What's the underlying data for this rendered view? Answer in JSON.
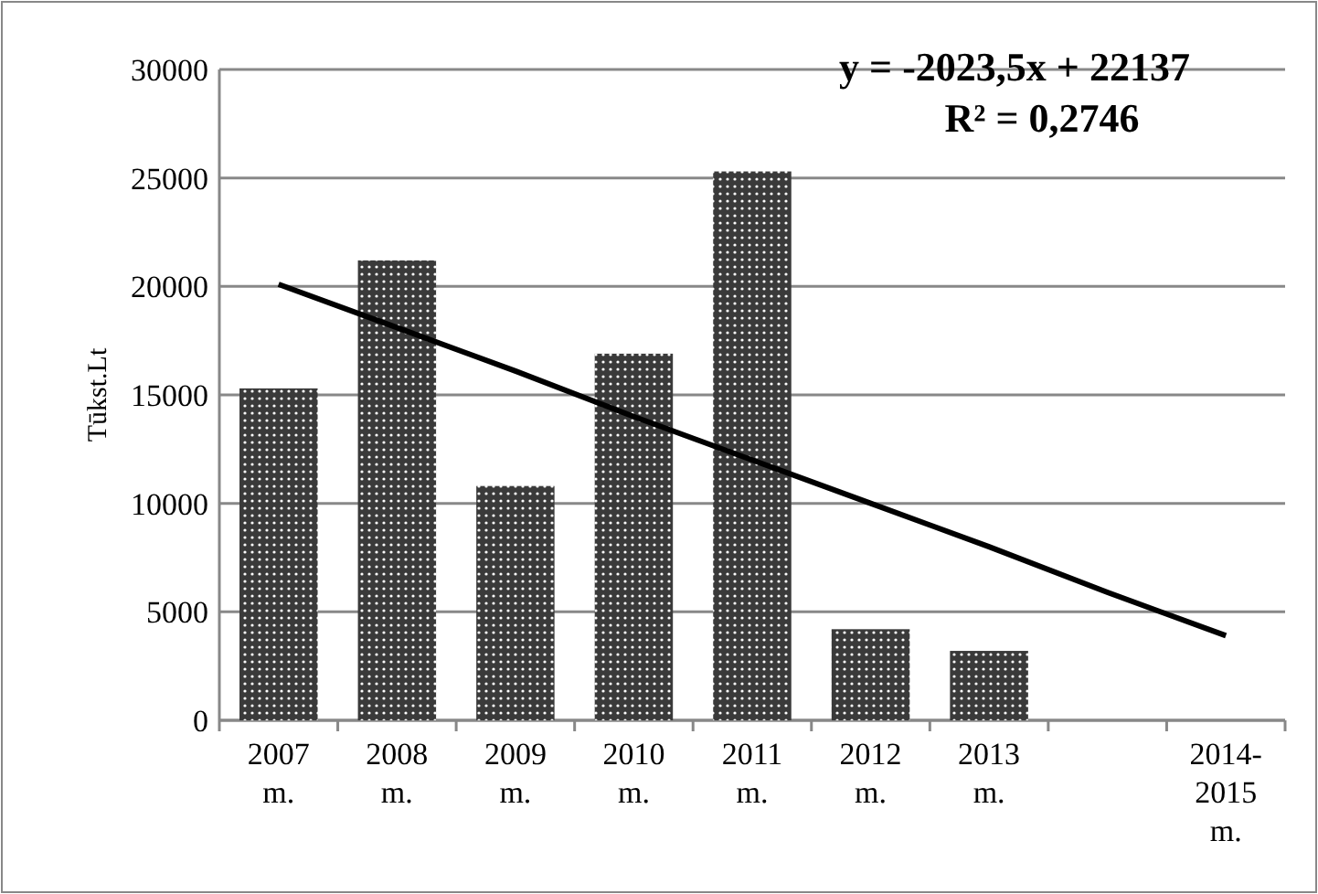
{
  "chart_data": {
    "type": "bar",
    "ylabel": "Tūkst.Lt",
    "categories": [
      "2007 m.",
      "2008 m.",
      "2009 m.",
      "2010 m.",
      "2011 m.",
      "2012 m.",
      "2013 m.",
      null,
      "2014-2015 m."
    ],
    "series": [
      {
        "color": "#3a3a3a",
        "values": [
          15300,
          21200,
          10800,
          16900,
          25300,
          4200,
          3200,
          null,
          null
        ]
      },
      {
        "type": "line",
        "color": "#000000",
        "values": [
          20100,
          18100,
          16100,
          14000,
          12000,
          10000,
          8000,
          5900,
          3900
        ]
      }
    ],
    "ylim": [
      0,
      30000
    ],
    "yticks": [
      0,
      5000,
      10000,
      15000,
      20000,
      25000,
      30000
    ],
    "grid": "y",
    "annotations": [
      "y = -2023,5x + 22137",
      "R² = 0,2746"
    ]
  }
}
